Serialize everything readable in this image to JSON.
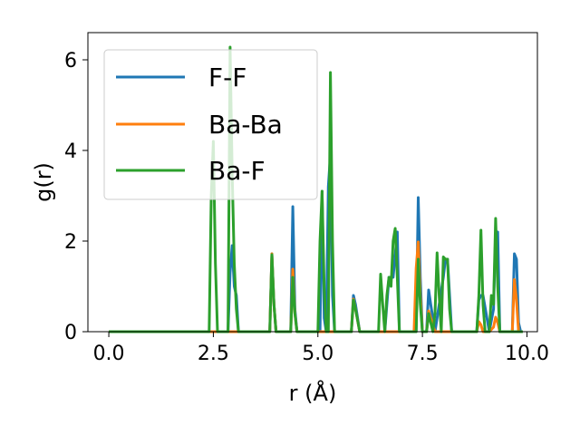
{
  "chart_data": {
    "type": "line",
    "xlabel": "r (Å)",
    "ylabel": "g(r)",
    "xlim": [
      -0.5,
      10.25
    ],
    "ylim": [
      0,
      6.6
    ],
    "xticks": [
      0.0,
      2.5,
      5.0,
      7.5,
      10.0
    ],
    "xtick_labels": [
      "0.0",
      "2.5",
      "5.0",
      "7.5",
      "10.0"
    ],
    "yticks": [
      0,
      2,
      4,
      6
    ],
    "ytick_labels": [
      "0",
      "2",
      "4",
      "6"
    ],
    "grid": false,
    "legend": "upper left",
    "series": [
      {
        "name": "F-F",
        "color": "#1f77b4",
        "x": [
          0,
          2.4,
          2.45,
          2.5,
          2.55,
          2.6,
          2.85,
          2.9,
          2.95,
          3.0,
          3.05,
          3.1,
          3.85,
          3.9,
          3.95,
          4.0,
          4.35,
          4.4,
          4.45,
          4.5,
          5.05,
          5.1,
          5.15,
          5.2,
          5.25,
          5.3,
          5.35,
          5.4,
          5.8,
          5.85,
          5.9,
          6.0,
          6.6,
          6.7,
          6.8,
          6.9,
          6.95,
          7.35,
          7.4,
          7.45,
          7.5,
          7.6,
          7.65,
          7.7,
          7.8,
          7.9,
          8.0,
          8.05,
          8.1,
          8.2,
          8.8,
          8.85,
          8.9,
          8.95,
          9.1,
          9.2,
          9.25,
          9.3,
          9.35,
          9.65,
          9.7,
          9.75,
          9.8,
          9.85
        ],
        "y": [
          0,
          0,
          0,
          0,
          0,
          0,
          0,
          1.3,
          1.9,
          1.0,
          0.8,
          0,
          0,
          1.72,
          0.6,
          0,
          0,
          2.76,
          0.5,
          0,
          0,
          3.1,
          0.3,
          0,
          3.2,
          3.9,
          0.8,
          0,
          0,
          0.8,
          0.6,
          0,
          0,
          1.2,
          1.2,
          2.2,
          0,
          0,
          2.96,
          1.2,
          0,
          0,
          0.92,
          0.6,
          0,
          0.6,
          1.2,
          1.6,
          1.6,
          0,
          0,
          0.7,
          0.8,
          0.8,
          0,
          0.5,
          2.2,
          2.2,
          0,
          0,
          1.72,
          1.6,
          0.2,
          0
        ]
      },
      {
        "name": "Ba-Ba",
        "color": "#ff7f0e",
        "x": [
          0,
          3.85,
          3.9,
          3.95,
          4.0,
          4.35,
          4.4,
          4.45,
          4.5,
          5.8,
          5.85,
          5.9,
          6.0,
          7.3,
          7.35,
          7.4,
          7.45,
          7.5,
          7.6,
          7.65,
          7.7,
          7.8,
          8.8,
          8.85,
          8.9,
          8.95,
          9.1,
          9.2,
          9.25,
          9.3,
          9.35,
          9.65,
          9.7,
          9.75,
          9.8
        ],
        "y": [
          0,
          0,
          1.72,
          0.6,
          0,
          0,
          1.38,
          0.4,
          0,
          0,
          0.72,
          0.5,
          0,
          0,
          1.4,
          1.98,
          0.8,
          0,
          0,
          0.46,
          0.3,
          0,
          0,
          0.22,
          0.15,
          0,
          0,
          0.1,
          0.32,
          0.2,
          0,
          0,
          1.15,
          0.7,
          0
        ]
      },
      {
        "name": "Ba-F",
        "color": "#2ca02c",
        "x": [
          0,
          2.4,
          2.45,
          2.5,
          2.55,
          2.6,
          2.8,
          2.85,
          2.9,
          2.95,
          3.0,
          3.05,
          3.1,
          3.85,
          3.9,
          3.95,
          4.0,
          4.35,
          4.4,
          4.45,
          4.5,
          5.0,
          5.05,
          5.1,
          5.15,
          5.2,
          5.25,
          5.3,
          5.35,
          5.4,
          5.8,
          5.85,
          5.9,
          6.0,
          6.45,
          6.5,
          6.55,
          6.6,
          6.65,
          6.7,
          6.75,
          6.8,
          6.85,
          6.9,
          6.95,
          7.35,
          7.4,
          7.45,
          7.5,
          7.6,
          7.65,
          7.7,
          7.75,
          7.8,
          7.85,
          7.9,
          7.95,
          8.0,
          8.05,
          8.1,
          8.15,
          8.2,
          8.25,
          8.8,
          8.85,
          8.9,
          8.95,
          9.0,
          9.1,
          9.15,
          9.2,
          9.25,
          9.3,
          9.35,
          9.4,
          9.9
        ],
        "y": [
          0,
          0,
          3.0,
          4.2,
          1.5,
          0,
          0,
          0,
          6.28,
          3.5,
          1.5,
          0.5,
          0,
          0,
          1.7,
          0.6,
          0,
          0,
          1.2,
          0.4,
          0,
          0,
          2.0,
          3.1,
          1.0,
          0,
          0,
          5.72,
          2.0,
          0,
          0,
          0.7,
          0.5,
          0,
          0,
          1.27,
          0.6,
          0,
          0.8,
          1.2,
          1.0,
          2.0,
          2.28,
          1.2,
          0,
          0,
          1.6,
          0.6,
          0,
          0,
          0.4,
          0.2,
          0,
          0.4,
          1.74,
          0.8,
          0,
          1.65,
          1.6,
          1.6,
          0.5,
          0,
          0,
          0,
          0.8,
          2.24,
          0.6,
          0,
          0,
          0.8,
          0.6,
          2.5,
          1.0,
          0,
          0,
          0
        ]
      }
    ]
  }
}
